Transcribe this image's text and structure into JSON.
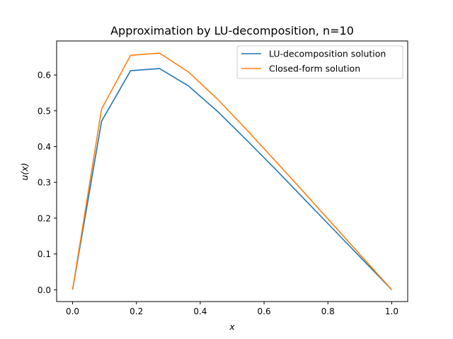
{
  "chart_data": {
    "type": "line",
    "title": "Approximation by LU-decomposition, n=10",
    "xlabel": "x",
    "ylabel": "u(x)",
    "xlim": [
      -0.05,
      1.05
    ],
    "ylim": [
      -0.033,
      0.695
    ],
    "xticks": [
      0.0,
      0.2,
      0.4,
      0.6,
      0.8,
      1.0
    ],
    "xtick_labels": [
      "0.0",
      "0.2",
      "0.4",
      "0.6",
      "0.8",
      "1.0"
    ],
    "yticks": [
      0.0,
      0.1,
      0.2,
      0.3,
      0.4,
      0.5,
      0.6
    ],
    "ytick_labels": [
      "0.0",
      "0.1",
      "0.2",
      "0.3",
      "0.4",
      "0.5",
      "0.6"
    ],
    "grid": false,
    "legend_position": "top-right",
    "series": [
      {
        "name": "LU-decomposition solution",
        "color": "#1f77b4",
        "x": [
          0.0,
          0.0909,
          0.1818,
          0.2727,
          0.3636,
          0.4545,
          0.5455,
          0.6364,
          0.7273,
          0.8182,
          0.9091,
          1.0
        ],
        "y": [
          0.0,
          0.471,
          0.612,
          0.618,
          0.569,
          0.498,
          0.418,
          0.336,
          0.252,
          0.168,
          0.084,
          0.0
        ]
      },
      {
        "name": "Closed-form solution",
        "color": "#ff7f0e",
        "x": [
          0.0,
          0.0909,
          0.1818,
          0.2727,
          0.3636,
          0.4545,
          0.5455,
          0.6364,
          0.7273,
          0.8182,
          0.9091,
          1.0
        ],
        "y": [
          0.0,
          0.505,
          0.655,
          0.661,
          0.608,
          0.532,
          0.447,
          0.359,
          0.27,
          0.18,
          0.09,
          0.0
        ]
      }
    ]
  }
}
